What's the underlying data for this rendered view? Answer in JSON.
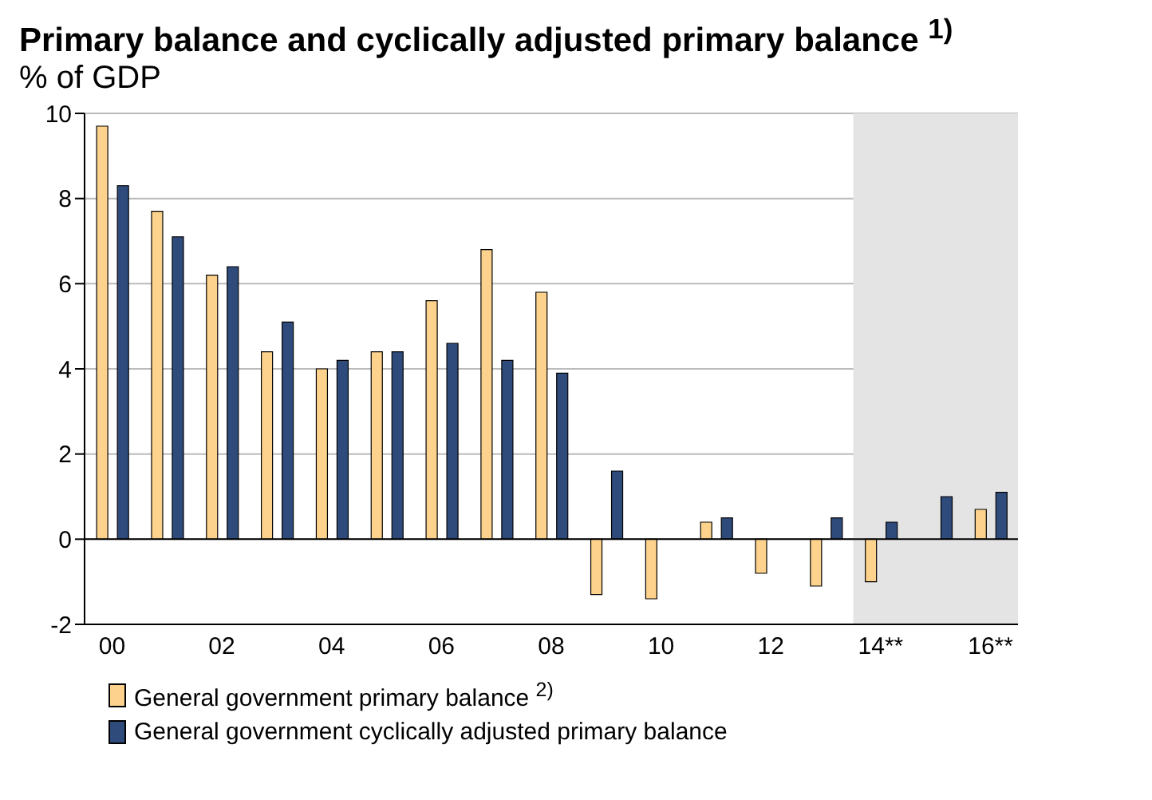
{
  "chart_data": {
    "type": "bar",
    "title": "Primary balance and cyclically adjusted primary balance $^{1)}$",
    "subtitle": "% of GDP",
    "categories": [
      "00",
      null,
      "02",
      null,
      "04",
      null,
      "06",
      null,
      "08",
      null,
      "10",
      null,
      "12",
      null,
      "14**",
      null,
      "16**"
    ],
    "series": [
      {
        "name": "General government primary balance $^{2)}$",
        "color": "#fdd28c",
        "values": [
          9.7,
          7.7,
          6.2,
          4.4,
          4.0,
          4.4,
          5.6,
          6.8,
          5.8,
          -1.3,
          -1.4,
          0.4,
          -0.8,
          -1.1,
          -1.0,
          null,
          0.7
        ]
      },
      {
        "name": "General government cyclically adjusted primary balance",
        "color": "#2f4b7c",
        "values": [
          8.3,
          7.1,
          6.4,
          5.1,
          4.2,
          4.4,
          4.6,
          4.2,
          3.9,
          1.6,
          null,
          0.5,
          null,
          0.5,
          0.4,
          1.0,
          1.1
        ]
      }
    ],
    "ylim": [
      -2,
      10
    ],
    "yticks": [
      -2,
      0,
      2,
      4,
      6,
      8,
      10
    ],
    "grid": "y",
    "legend": "bottom",
    "bands": [
      {
        "axis": "x",
        "from": "14**",
        "to": "16**",
        "color": "#e4e4e4"
      }
    ]
  }
}
